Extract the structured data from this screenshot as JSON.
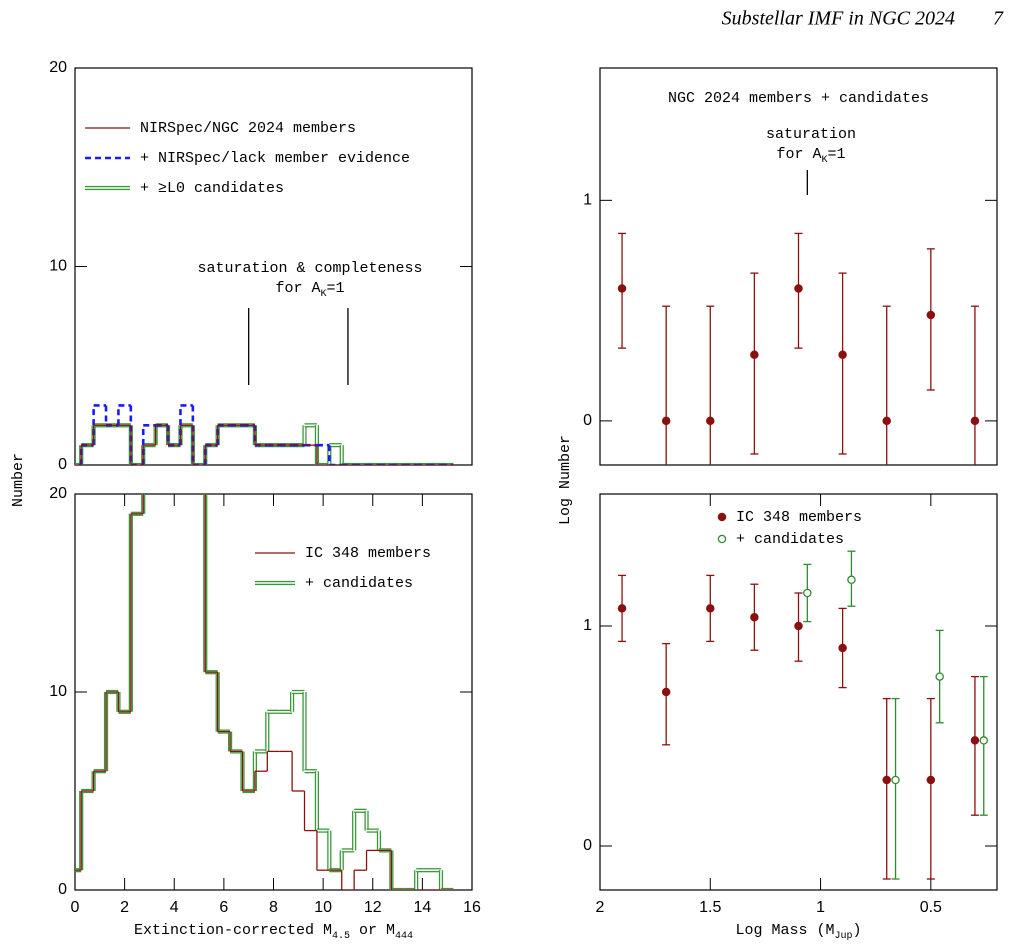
{
  "header": {
    "title": "Substellar IMF in NGC 2024",
    "page": "7"
  },
  "chart_data": [
    {
      "type": "histogram",
      "bins": [
        -0.25,
        0.25,
        0.75,
        1.25,
        1.75,
        2.25,
        2.75,
        3.25,
        3.75,
        4.25,
        4.75,
        5.25,
        5.75,
        6.25,
        6.75,
        7.25,
        7.75,
        8.25,
        8.75,
        9.25,
        9.75,
        10.25,
        10.75,
        11.25,
        11.75,
        12.25,
        12.75,
        13.25,
        13.75,
        14.25,
        14.75,
        15.25
      ],
      "series": [
        {
          "name": "NIRSpec/NGC 2024 members",
          "color": "#8b1010",
          "line_style": "solid",
          "values": [
            0,
            1,
            2,
            2,
            2,
            0,
            1,
            2,
            1,
            2,
            0,
            1,
            2,
            2,
            2,
            1,
            1,
            1,
            1,
            1,
            0,
            0,
            0,
            0,
            0,
            0,
            0,
            0,
            0,
            0,
            0
          ]
        },
        {
          "name": "+ NIRSpec/lack member evidence",
          "color": "#1a1aff",
          "line_style": "dashed",
          "values": [
            0,
            1,
            3,
            2,
            3,
            0,
            2,
            2,
            1,
            3,
            0,
            1,
            2,
            2,
            2,
            1,
            1,
            1,
            1,
            1,
            1,
            0,
            0,
            0,
            0,
            0,
            0,
            0,
            0,
            0,
            0
          ]
        },
        {
          "name": "+ ≥L0 candidates",
          "color": "#3a9a3a",
          "line_style": "double",
          "values": [
            0,
            1,
            2,
            2,
            2,
            0,
            1,
            2,
            1,
            2,
            0,
            1,
            2,
            2,
            2,
            1,
            1,
            1,
            1,
            2,
            0,
            1,
            0,
            0,
            0,
            0,
            0,
            0,
            0,
            0,
            0
          ]
        }
      ],
      "xlim": [
        0,
        16
      ],
      "ylim": [
        0,
        20
      ],
      "yticks": [
        0,
        10,
        20
      ],
      "ylabel": "Number",
      "annotation": [
        "saturation & completeness"
      ],
      "annotation_sub": [
        "for A",
        "K",
        "=1"
      ],
      "limit_lines": [
        7,
        11
      ]
    },
    {
      "type": "histogram",
      "bins": [
        -0.25,
        0.25,
        0.75,
        1.25,
        1.75,
        2.25,
        2.75,
        3.25,
        3.75,
        4.25,
        4.75,
        5.25,
        5.75,
        6.25,
        6.75,
        7.25,
        7.75,
        8.25,
        8.75,
        9.25,
        9.75,
        10.25,
        10.75,
        11.25,
        11.75,
        12.25,
        12.75,
        13.25,
        13.75,
        14.25,
        14.75,
        15.25
      ],
      "series": [
        {
          "name": "IC 348 members",
          "color": "#8b1010",
          "line_style": "solid",
          "values": [
            1,
            5,
            6,
            10,
            9,
            19,
            21,
            21,
            21,
            21,
            21,
            11,
            8,
            7,
            5,
            6,
            7,
            7,
            5,
            3,
            1,
            1,
            0,
            1,
            2,
            2,
            0,
            0,
            0,
            0,
            0
          ]
        },
        {
          "name": "+ candidates",
          "color": "#3a9a3a",
          "line_style": "double",
          "values": [
            1,
            5,
            6,
            10,
            9,
            19,
            21,
            21,
            21,
            21,
            21,
            11,
            8,
            7,
            5,
            7,
            9,
            9,
            10,
            6,
            3,
            1,
            2,
            4,
            3,
            2,
            0,
            0,
            1,
            1,
            0
          ]
        }
      ],
      "xlim": [
        0,
        16
      ],
      "ylim": [
        0,
        20
      ],
      "yticks": [
        0,
        10,
        20
      ],
      "xticks": [
        0,
        2,
        4,
        6,
        8,
        10,
        12,
        14,
        16
      ],
      "xlabel": [
        "Extinction-corrected M",
        "4.5",
        " or M",
        "444"
      ]
    },
    {
      "type": "errorbar",
      "title": "NGC 2024 members + candidates",
      "series": [
        {
          "color": "#8b1010",
          "marker": "filled",
          "x": [
            1.9,
            1.7,
            1.5,
            1.3,
            1.1,
            0.9,
            0.7,
            0.5,
            0.3
          ],
          "values": [
            0.6,
            0,
            0,
            0.3,
            0.6,
            0.3,
            0,
            0.48,
            0
          ],
          "lower": [
            0.33,
            null,
            null,
            -0.15,
            0.33,
            -0.15,
            null,
            0.14,
            null
          ],
          "upper": [
            0.85,
            0.52,
            0.52,
            0.67,
            0.85,
            0.67,
            0.52,
            0.78,
            0.52
          ]
        }
      ],
      "xlim": [
        2,
        0.2
      ],
      "ylim": [
        -0.2,
        1.6
      ],
      "yticks": [
        0,
        1
      ],
      "ylabel": "Log Number",
      "annotation": [
        "saturation"
      ],
      "annotation_sub": [
        "for A",
        "K",
        "=1"
      ],
      "limit_lines": [
        1.06
      ]
    },
    {
      "type": "errorbar",
      "series": [
        {
          "name": "IC 348 members",
          "color": "#8b1010",
          "marker": "filled",
          "x": [
            1.9,
            1.7,
            1.5,
            1.3,
            1.1,
            0.9,
            0.7,
            0.5,
            0.3
          ],
          "values": [
            1.08,
            0.7,
            1.08,
            1.04,
            1.0,
            0.9,
            0.3,
            0.3,
            0.48
          ],
          "lower": [
            0.93,
            0.46,
            0.93,
            0.89,
            0.84,
            0.72,
            -0.15,
            -0.15,
            0.14
          ],
          "upper": [
            1.23,
            0.92,
            1.23,
            1.19,
            1.15,
            1.08,
            0.67,
            0.67,
            0.77
          ]
        },
        {
          "name": "+ candidates",
          "color": "#2e8b2e",
          "marker": "open",
          "x": [
            1.06,
            0.86,
            0.66,
            0.46,
            0.26
          ],
          "values": [
            1.15,
            1.21,
            0.3,
            0.77,
            0.48
          ],
          "lower": [
            1.02,
            1.09,
            -0.15,
            0.56,
            0.14
          ],
          "upper": [
            1.28,
            1.34,
            0.67,
            0.98,
            0.77
          ]
        }
      ],
      "xlim": [
        2,
        0.2
      ],
      "ylim": [
        -0.2,
        1.6
      ],
      "yticks": [
        0,
        1
      ],
      "xticks": [
        2,
        1.5,
        1,
        0.5
      ],
      "xlabel": [
        "Log Mass (M",
        "Jup",
        ")"
      ]
    }
  ]
}
